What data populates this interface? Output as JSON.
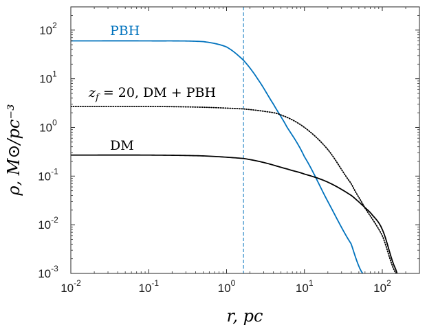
{
  "chart_data": {
    "type": "line",
    "x_scale": "log",
    "y_scale": "log",
    "xlim": [
      0.01,
      300
    ],
    "ylim": [
      0.001,
      300
    ],
    "grid": false,
    "xlabel": "r, pc",
    "ylabel": "ρ, M⊙/pc⁻³",
    "x_ticks": [
      {
        "value": 0.01,
        "base": "10",
        "exp": "-2"
      },
      {
        "value": 0.1,
        "base": "10",
        "exp": "-1"
      },
      {
        "value": 1,
        "base": "10",
        "exp": "0"
      },
      {
        "value": 10,
        "base": "10",
        "exp": "1"
      },
      {
        "value": 100,
        "base": "10",
        "exp": "2"
      }
    ],
    "y_ticks": [
      {
        "value": 0.001,
        "base": "10",
        "exp": "-3"
      },
      {
        "value": 0.01,
        "base": "10",
        "exp": "-2"
      },
      {
        "value": 0.1,
        "base": "10",
        "exp": "-1"
      },
      {
        "value": 1,
        "base": "10",
        "exp": "0"
      },
      {
        "value": 10,
        "base": "10",
        "exp": "1"
      },
      {
        "value": 100,
        "base": "10",
        "exp": "2"
      }
    ],
    "vline": {
      "x": 1.65,
      "style": "dashed",
      "color": "#0072bd"
    },
    "series": [
      {
        "name": "PBH",
        "color": "#0072bd",
        "style": "solid",
        "points": [
          [
            0.01,
            60
          ],
          [
            0.1,
            60
          ],
          [
            0.5,
            58
          ],
          [
            1.0,
            45
          ],
          [
            1.65,
            24
          ],
          [
            2.5,
            10
          ],
          [
            4.0,
            3
          ],
          [
            6.0,
            1.0
          ],
          [
            10,
            0.25
          ],
          [
            20,
            0.03
          ],
          [
            40,
            0.004
          ],
          [
            56,
            0.001
          ]
        ]
      },
      {
        "name": "z_f = 20, DM + PBH",
        "color": "#000000",
        "style": "dotted",
        "points": [
          [
            0.01,
            2.7
          ],
          [
            0.1,
            2.7
          ],
          [
            0.5,
            2.6
          ],
          [
            1.65,
            2.4
          ],
          [
            3,
            2.15
          ],
          [
            5,
            1.8
          ],
          [
            10,
            1.0
          ],
          [
            20,
            0.35
          ],
          [
            40,
            0.07
          ],
          [
            60,
            0.022
          ],
          [
            100,
            0.006
          ],
          [
            150,
            0.001
          ]
        ]
      },
      {
        "name": "DM",
        "color": "#000000",
        "style": "solid",
        "points": [
          [
            0.01,
            0.27
          ],
          [
            0.1,
            0.27
          ],
          [
            0.5,
            0.26
          ],
          [
            1.65,
            0.23
          ],
          [
            3,
            0.19
          ],
          [
            6,
            0.14
          ],
          [
            10,
            0.11
          ],
          [
            20,
            0.075
          ],
          [
            40,
            0.04
          ],
          [
            70,
            0.018
          ],
          [
            100,
            0.008
          ],
          [
            150,
            0.0012
          ],
          [
            155,
            0.001
          ]
        ]
      }
    ],
    "annotations": [
      {
        "id": "pbh",
        "text": "PBH",
        "color": "#0072bd"
      },
      {
        "id": "mix",
        "text": "= 20, DM + PBH",
        "var": "z",
        "sub": "f",
        "color": "#000000"
      },
      {
        "id": "dm",
        "text": "DM",
        "color": "#000000"
      }
    ]
  }
}
